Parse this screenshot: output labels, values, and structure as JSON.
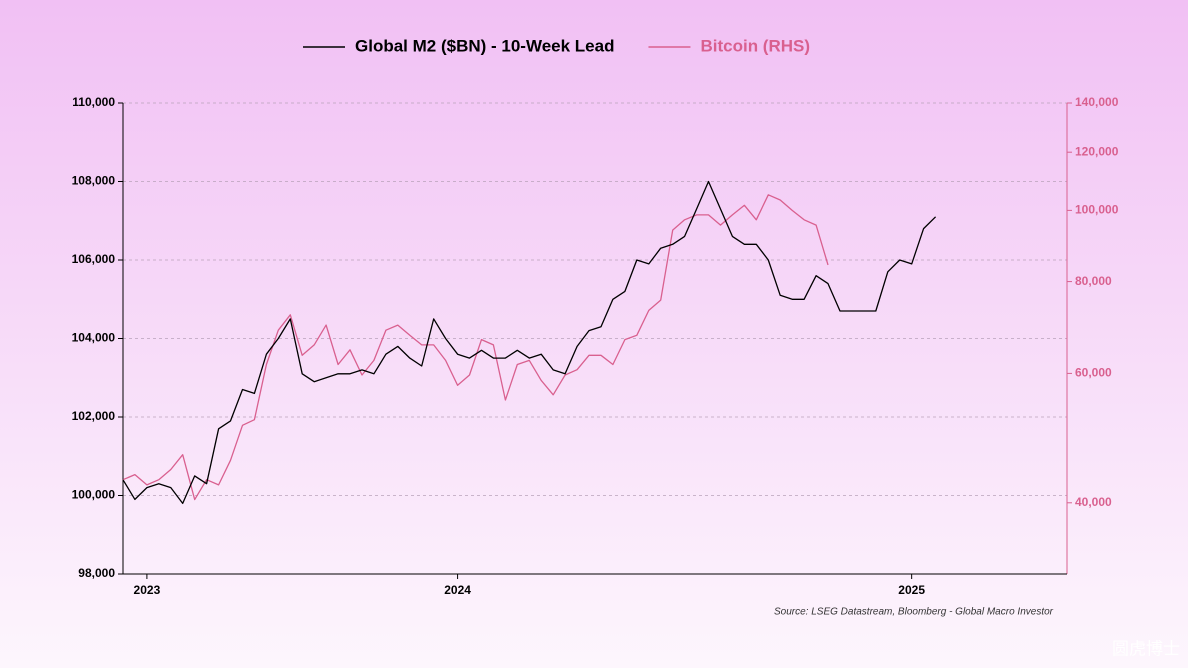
{
  "chart_data": {
    "type": "line",
    "watermark": "圆虎博士",
    "source": "Source: LSEG Datastream, Bloomberg - Global Macro Investor",
    "categories": [
      null,
      null,
      "2023",
      null,
      null,
      null,
      null,
      null,
      null,
      null,
      null,
      null,
      null,
      null,
      null,
      null,
      null,
      null,
      null,
      null,
      null,
      null,
      null,
      null,
      null,
      null,
      null,
      null,
      "2024",
      null,
      null,
      null,
      null,
      null,
      null,
      null,
      null,
      null,
      null,
      null,
      null,
      null,
      null,
      null,
      null,
      null,
      null,
      null,
      null,
      null,
      null,
      null,
      null,
      null,
      null,
      null,
      null,
      null,
      null,
      null,
      null,
      null,
      null,
      null,
      null,
      null,
      "2025",
      null,
      null,
      null,
      null,
      null,
      null,
      null,
      null,
      null,
      null,
      null,
      null,
      null
    ],
    "series": [
      {
        "name": "Global M2 ($BN) - 10-Week Lead",
        "color": "#000000",
        "axis": "y",
        "values": [
          100400,
          99900,
          100200,
          100300,
          100200,
          99800,
          100500,
          100300,
          101700,
          101900,
          102700,
          102600,
          103600,
          104000,
          104500,
          103100,
          102900,
          103000,
          103100,
          103100,
          103200,
          103100,
          103600,
          103800,
          103500,
          103300,
          104500,
          104000,
          103600,
          103500,
          103700,
          103500,
          103500,
          103700,
          103500,
          103600,
          103200,
          103100,
          103800,
          104200,
          104300,
          105000,
          105200,
          106000,
          105900,
          106300,
          106400,
          106600,
          107300,
          108000,
          107300,
          106600,
          106400,
          106400,
          106000,
          105100,
          105000,
          105000,
          105600,
          105400,
          104700,
          104700,
          104700,
          104700,
          105700,
          106000,
          105900,
          106800,
          107100,
          null,
          null,
          null,
          null,
          null,
          null,
          null,
          null,
          null,
          null,
          null
        ]
      },
      {
        "name": "Bitcoin (RHS)",
        "color": "#d9608f",
        "axis": "y2",
        "values": [
          43000,
          43700,
          42300,
          43000,
          44400,
          46500,
          40400,
          43000,
          42300,
          45700,
          51000,
          51900,
          61700,
          68700,
          72100,
          63500,
          65600,
          69800,
          61700,
          64600,
          59700,
          62500,
          68700,
          69800,
          67600,
          65600,
          65600,
          62500,
          57800,
          59700,
          66700,
          65600,
          55200,
          61700,
          62500,
          58700,
          56100,
          59700,
          60700,
          63500,
          63500,
          61700,
          66700,
          67600,
          73100,
          75500,
          94000,
          97100,
          98600,
          98600,
          95500,
          98600,
          101600,
          97100,
          105000,
          103300,
          100000,
          97100,
          95500,
          84300,
          null,
          null,
          null,
          null,
          null,
          null,
          null,
          null,
          null,
          null,
          null,
          null,
          null,
          null,
          null,
          null,
          null,
          null,
          null,
          null
        ]
      }
    ],
    "ylim": [
      98000,
      110000
    ],
    "yticks": [
      {
        "value": 98000,
        "label": "98,000"
      },
      {
        "value": 100000,
        "label": "100,000"
      },
      {
        "value": 102000,
        "label": "102,000"
      },
      {
        "value": 104000,
        "label": "104,000"
      },
      {
        "value": 106000,
        "label": "106,000"
      },
      {
        "value": 108000,
        "label": "108,000"
      },
      {
        "value": 110000,
        "label": "110,000"
      }
    ],
    "y2lim": [
      32000,
      140000
    ],
    "y2scale": "log",
    "y2ticks": [
      {
        "value": 40000,
        "label": "40,000"
      },
      {
        "value": 60000,
        "label": "60,000"
      },
      {
        "value": 80000,
        "label": "80,000"
      },
      {
        "value": 100000,
        "label": "100,000"
      },
      {
        "value": 120000,
        "label": "120,000"
      },
      {
        "value": 140000,
        "label": "140,000"
      }
    ],
    "grid": true,
    "legend": "top"
  }
}
